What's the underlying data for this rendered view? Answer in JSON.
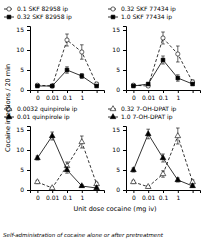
{
  "chart_data": [
    {
      "type": "line",
      "ylabel": "Cocaine injections / 20 min",
      "xlabel": "Unit dose cocaine (mg iv)",
      "annotations": [
        "Self-administration of cocaine alone or after pretreatment"
      ],
      "categories": [
        "0",
        "0.01",
        "0.1",
        "1",
        null
      ],
      "ylim": [
        0,
        16
      ],
      "yticks": [
        0,
        5,
        10,
        15
      ],
      "series": [
        {
          "name": "0.1 SKF 82958 ip",
          "color": "#000000",
          "marker": "circle-open",
          "line_style": "dashed",
          "values": [
            1.2,
            1.0,
            12.5,
            9.5,
            1.5
          ],
          "errors": [
            0.3,
            0.2,
            1.5,
            1.8,
            0.4
          ]
        },
        {
          "name": "0.32 SKF 82958 ip",
          "color": "#000000",
          "marker": "square",
          "line_style": "solid",
          "values": [
            1.0,
            1.0,
            5.0,
            3.5,
            1.0
          ],
          "errors": [
            0.2,
            0.2,
            0.8,
            0.6,
            0.2
          ]
        }
      ]
    },
    {
      "type": "line",
      "categories": [
        "0",
        "0.01",
        "0.1",
        "1",
        null
      ],
      "ylim": [
        0,
        16
      ],
      "yticks": [
        0,
        5,
        10,
        15
      ],
      "series": [
        {
          "name": "0.32 SKF 77434 ip",
          "color": "#000000",
          "marker": "circle-open",
          "line_style": "dashed",
          "values": [
            1.2,
            1.0,
            13.0,
            9.0,
            2.0
          ],
          "errors": [
            0.3,
            0.2,
            1.5,
            2.0,
            0.5
          ]
        },
        {
          "name": "1.0 SKF 77434 ip",
          "color": "#000000",
          "marker": "square",
          "line_style": "solid",
          "values": [
            1.0,
            1.5,
            7.5,
            3.0,
            1.5
          ],
          "errors": [
            0.2,
            0.3,
            1.0,
            0.8,
            0.3
          ]
        }
      ]
    },
    {
      "type": "line",
      "categories": [
        "0",
        "0.01",
        "0.1",
        "1",
        null
      ],
      "ylim": [
        0,
        16
      ],
      "yticks": [
        0,
        5,
        10,
        15
      ],
      "series": [
        {
          "name": "0.0032 quinpirole ip",
          "color": "#000000",
          "marker": "triangle-open",
          "line_style": "dashed",
          "values": [
            2.0,
            0.5,
            6.0,
            12.0,
            1.5
          ],
          "errors": [
            0.4,
            0.2,
            1.0,
            1.5,
            0.4
          ]
        },
        {
          "name": "0.01 quinpirole ip",
          "color": "#000000",
          "marker": "triangle",
          "line_style": "solid",
          "values": [
            8.0,
            13.5,
            5.0,
            1.0,
            0.5
          ],
          "errors": [
            0.5,
            1.0,
            0.8,
            0.3,
            0.2
          ]
        }
      ]
    },
    {
      "type": "line",
      "categories": [
        "0",
        "0.01",
        "0.1",
        "1",
        null
      ],
      "ylim": [
        0,
        16
      ],
      "yticks": [
        0,
        5,
        10,
        15
      ],
      "series": [
        {
          "name": "0.32 7-OH-DPAT ip",
          "color": "#000000",
          "marker": "triangle-open",
          "line_style": "dashed",
          "values": [
            2.0,
            0.8,
            4.0,
            13.5,
            2.0
          ],
          "errors": [
            0.4,
            0.3,
            0.8,
            2.0,
            0.5
          ]
        },
        {
          "name": "1.0 7-OH-DPAT ip",
          "color": "#000000",
          "marker": "triangle",
          "line_style": "solid",
          "values": [
            5.0,
            14.0,
            8.0,
            2.5,
            1.0
          ],
          "errors": [
            0.5,
            1.2,
            1.0,
            0.5,
            0.3
          ]
        }
      ]
    }
  ]
}
